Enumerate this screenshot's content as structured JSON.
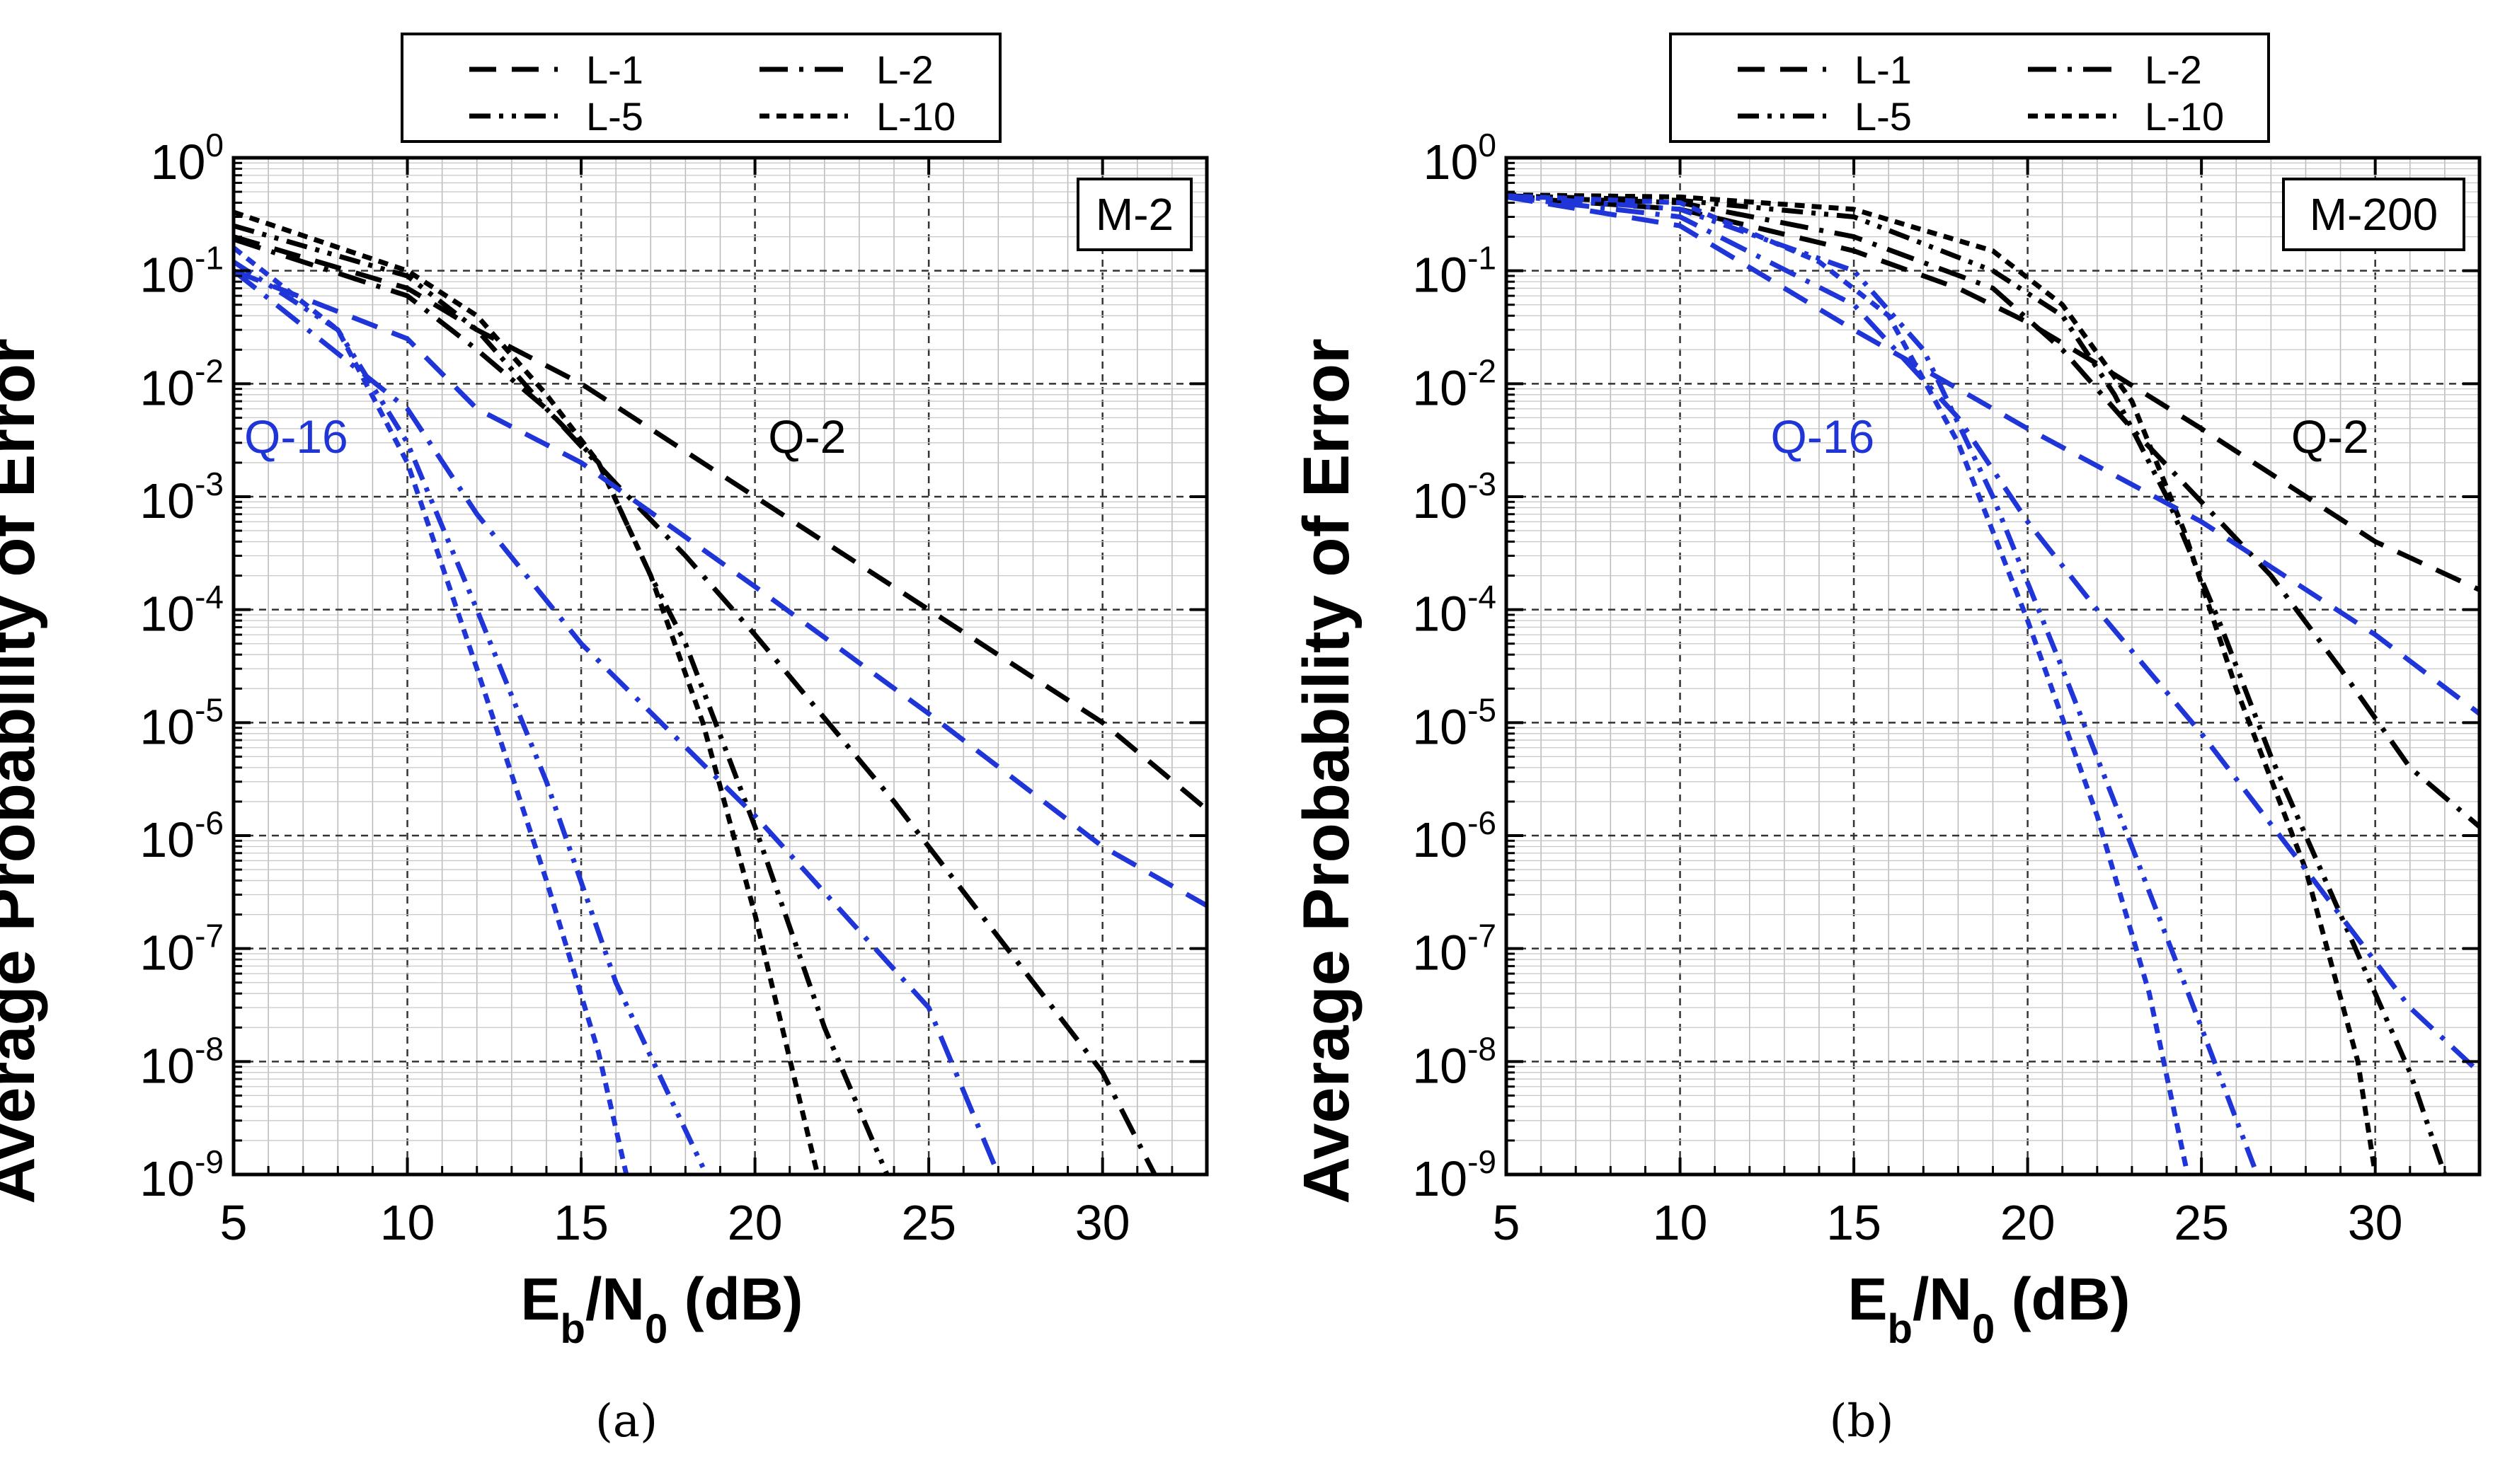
{
  "chart_data": [
    {
      "type": "line",
      "id": "a",
      "panel_label": "(a)",
      "box_label": "M-2",
      "ylabel": "Average Probability of Error",
      "xlabel": {
        "main": "E",
        "sub1": "b",
        "mid": "/N",
        "sub2": "0",
        "tail": " (dB)"
      },
      "xlim": [
        5,
        33
      ],
      "ylim_exp": [
        -9,
        0
      ],
      "xticks": [
        "5",
        "10",
        "15",
        "20",
        "25",
        "30"
      ],
      "ytick_exponents": [
        "0",
        "-1",
        "-2",
        "-3",
        "-4",
        "-5",
        "-6",
        "-7",
        "-8",
        "-9"
      ],
      "ytick_base": "10",
      "legend": [
        {
          "label": "L-1",
          "style": "dash"
        },
        {
          "label": "L-2",
          "style": "dashdot"
        },
        {
          "label": "L-5",
          "style": "dashdotdot"
        },
        {
          "label": "L-10",
          "style": "short"
        }
      ],
      "annotations": [
        {
          "text": "Q-16",
          "x": 6.8,
          "y_exp": -2.45,
          "color": "blue"
        },
        {
          "text": "Q-2",
          "x": 21.5,
          "y_exp": -2.45,
          "color": "black"
        }
      ],
      "series": [
        {
          "name": "L-1",
          "group": "Q-2",
          "color": "black",
          "style": "dash",
          "points": [
            [
              5,
              0.2
            ],
            [
              10,
              0.07
            ],
            [
              12,
              0.03
            ],
            [
              15,
              0.01
            ],
            [
              20,
              0.001
            ],
            [
              25,
              0.0001
            ],
            [
              30,
              1e-05
            ],
            [
              33,
              1.7e-06
            ]
          ]
        },
        {
          "name": "L-2",
          "group": "Q-2",
          "color": "black",
          "style": "dashdot",
          "points": [
            [
              5,
              0.19
            ],
            [
              10,
              0.06
            ],
            [
              12,
              0.02
            ],
            [
              14,
              0.006
            ],
            [
              16,
              0.0013
            ],
            [
              18,
              0.0003
            ],
            [
              20,
              6e-05
            ],
            [
              24,
              2e-06
            ],
            [
              30,
              8e-09
            ],
            [
              31.5,
              1e-09
            ]
          ]
        },
        {
          "name": "L-5",
          "group": "Q-2",
          "color": "black",
          "style": "dashdotdot",
          "points": [
            [
              5,
              0.25
            ],
            [
              10,
              0.09
            ],
            [
              12,
              0.03
            ],
            [
              14,
              0.006
            ],
            [
              15.5,
              0.002
            ],
            [
              17,
              0.0002
            ],
            [
              18,
              5e-05
            ],
            [
              20,
              1.2e-06
            ],
            [
              22,
              2e-08
            ],
            [
              23.8,
              1e-09
            ]
          ]
        },
        {
          "name": "L-10",
          "group": "Q-2",
          "color": "black",
          "style": "short",
          "points": [
            [
              5,
              0.33
            ],
            [
              10,
              0.1
            ],
            [
              12,
              0.04
            ],
            [
              14,
              0.008
            ],
            [
              15.5,
              0.002
            ],
            [
              17,
              0.0002
            ],
            [
              18.5,
              1e-05
            ],
            [
              20,
              2e-07
            ],
            [
              21.8,
              1e-09
            ]
          ]
        },
        {
          "name": "L-1",
          "group": "Q-16",
          "color": "blue",
          "style": "dash",
          "points": [
            [
              5,
              0.1
            ],
            [
              10,
              0.025
            ],
            [
              12,
              0.006
            ],
            [
              15,
              0.002
            ],
            [
              20,
              0.00016
            ],
            [
              25,
              1.2e-05
            ],
            [
              30,
              8e-07
            ],
            [
              33,
              2.4e-07
            ]
          ]
        },
        {
          "name": "L-2",
          "group": "Q-16",
          "color": "blue",
          "style": "dashdot",
          "points": [
            [
              5,
              0.1
            ],
            [
              10,
              0.006
            ],
            [
              12,
              0.0007
            ],
            [
              15,
              5e-05
            ],
            [
              20,
              1.5e-06
            ],
            [
              25,
              3e-08
            ],
            [
              27,
              1e-09
            ]
          ]
        },
        {
          "name": "L-5",
          "group": "Q-16",
          "color": "blue",
          "style": "dashdotdot",
          "points": [
            [
              5,
              0.12
            ],
            [
              8,
              0.03
            ],
            [
              10,
              0.003
            ],
            [
              12,
              0.0001
            ],
            [
              14,
              3e-06
            ],
            [
              16,
              5e-08
            ],
            [
              18.6,
              1e-09
            ]
          ]
        },
        {
          "name": "L-10",
          "group": "Q-16",
          "color": "blue",
          "style": "short",
          "points": [
            [
              5,
              0.16
            ],
            [
              8,
              0.03
            ],
            [
              10,
              0.002
            ],
            [
              12,
              3e-05
            ],
            [
              14,
              4e-07
            ],
            [
              15.5,
              1.2e-08
            ],
            [
              16.3,
              1e-09
            ]
          ]
        }
      ]
    },
    {
      "type": "line",
      "id": "b",
      "panel_label": "(b)",
      "box_label": "M-200",
      "ylabel": "Average Probability of Error",
      "xlabel": {
        "main": "E",
        "sub1": "b",
        "mid": "/N",
        "sub2": "0",
        "tail": " (dB)"
      },
      "xlim": [
        5,
        33
      ],
      "ylim_exp": [
        -9,
        0
      ],
      "xticks": [
        "5",
        "10",
        "15",
        "20",
        "25",
        "30"
      ],
      "ytick_exponents": [
        "0",
        "-1",
        "-2",
        "-3",
        "-4",
        "-5",
        "-6",
        "-7",
        "-8",
        "-9"
      ],
      "ytick_base": "10",
      "legend": [
        {
          "label": "L-1",
          "style": "dash"
        },
        {
          "label": "L-2",
          "style": "dashdot"
        },
        {
          "label": "L-5",
          "style": "dashdotdot"
        },
        {
          "label": "L-10",
          "style": "short"
        }
      ],
      "annotations": [
        {
          "text": "Q-16",
          "x": 14.1,
          "y_exp": -2.45,
          "color": "blue"
        },
        {
          "text": "Q-2",
          "x": 28.7,
          "y_exp": -2.45,
          "color": "black"
        }
      ],
      "series": [
        {
          "name": "L-1",
          "group": "Q-2",
          "color": "black",
          "style": "dash",
          "points": [
            [
              5,
              0.45
            ],
            [
              10,
              0.35
            ],
            [
              15,
              0.15
            ],
            [
              18,
              0.07
            ],
            [
              20,
              0.035
            ],
            [
              22,
              0.015
            ],
            [
              25,
              0.004
            ],
            [
              30,
              0.0004
            ],
            [
              33,
              0.00015
            ]
          ]
        },
        {
          "name": "L-2",
          "group": "Q-2",
          "color": "black",
          "style": "dashdot",
          "points": [
            [
              5,
              0.45
            ],
            [
              10,
              0.4
            ],
            [
              15,
              0.2
            ],
            [
              19,
              0.07
            ],
            [
              21,
              0.02
            ],
            [
              23,
              0.004
            ],
            [
              25,
              0.0009
            ],
            [
              27,
              0.0002
            ],
            [
              29,
              3e-05
            ],
            [
              31,
              4e-06
            ],
            [
              33,
              1.2e-06
            ]
          ]
        },
        {
          "name": "L-5",
          "group": "Q-2",
          "color": "black",
          "style": "dashdotdot",
          "points": [
            [
              5,
              0.46
            ],
            [
              10,
              0.42
            ],
            [
              15,
              0.3
            ],
            [
              19,
              0.1
            ],
            [
              21,
              0.04
            ],
            [
              22.5,
              0.008
            ],
            [
              24,
              0.001
            ],
            [
              25.5,
              8e-05
            ],
            [
              27,
              5e-06
            ],
            [
              29,
              2e-07
            ],
            [
              31,
              8e-09
            ],
            [
              32,
              1e-09
            ]
          ]
        },
        {
          "name": "L-10",
          "group": "Q-2",
          "color": "black",
          "style": "short",
          "points": [
            [
              5,
              0.47
            ],
            [
              10,
              0.45
            ],
            [
              15,
              0.35
            ],
            [
              19,
              0.15
            ],
            [
              21,
              0.05
            ],
            [
              23,
              0.007
            ],
            [
              24.5,
              0.0005
            ],
            [
              26,
              2e-05
            ],
            [
              28,
              5e-07
            ],
            [
              29.5,
              1e-08
            ],
            [
              30,
              1e-09
            ]
          ]
        },
        {
          "name": "L-1",
          "group": "Q-16",
          "color": "blue",
          "style": "dash",
          "points": [
            [
              5,
              0.45
            ],
            [
              10,
              0.25
            ],
            [
              15,
              0.03
            ],
            [
              18,
              0.009
            ],
            [
              20,
              0.004
            ],
            [
              25,
              0.0006
            ],
            [
              30,
              6e-05
            ],
            [
              33,
              1.2e-05
            ]
          ]
        },
        {
          "name": "L-2",
          "group": "Q-16",
          "color": "blue",
          "style": "dashdot",
          "points": [
            [
              5,
              0.45
            ],
            [
              10,
              0.3
            ],
            [
              15,
              0.05
            ],
            [
              18,
              0.005
            ],
            [
              20,
              0.0006
            ],
            [
              22,
              0.0001
            ],
            [
              25,
              8e-06
            ],
            [
              28,
              5e-07
            ],
            [
              31,
              3e-08
            ],
            [
              33,
              8e-09
            ]
          ]
        },
        {
          "name": "L-5",
          "group": "Q-16",
          "color": "blue",
          "style": "dashdotdot",
          "points": [
            [
              5,
              0.46
            ],
            [
              10,
              0.35
            ],
            [
              15,
              0.1
            ],
            [
              17,
              0.02
            ],
            [
              19,
              0.001
            ],
            [
              21,
              3e-05
            ],
            [
              23,
              8e-07
            ],
            [
              25,
              2e-08
            ],
            [
              26.6,
              1e-09
            ]
          ]
        },
        {
          "name": "L-10",
          "group": "Q-16",
          "color": "blue",
          "style": "short",
          "points": [
            [
              5,
              0.46
            ],
            [
              10,
              0.4
            ],
            [
              14,
              0.12
            ],
            [
              16,
              0.04
            ],
            [
              18,
              0.003
            ],
            [
              20,
              8e-05
            ],
            [
              22,
              1.5e-06
            ],
            [
              23.5,
              4e-08
            ],
            [
              24.6,
              1e-09
            ]
          ]
        }
      ]
    }
  ]
}
